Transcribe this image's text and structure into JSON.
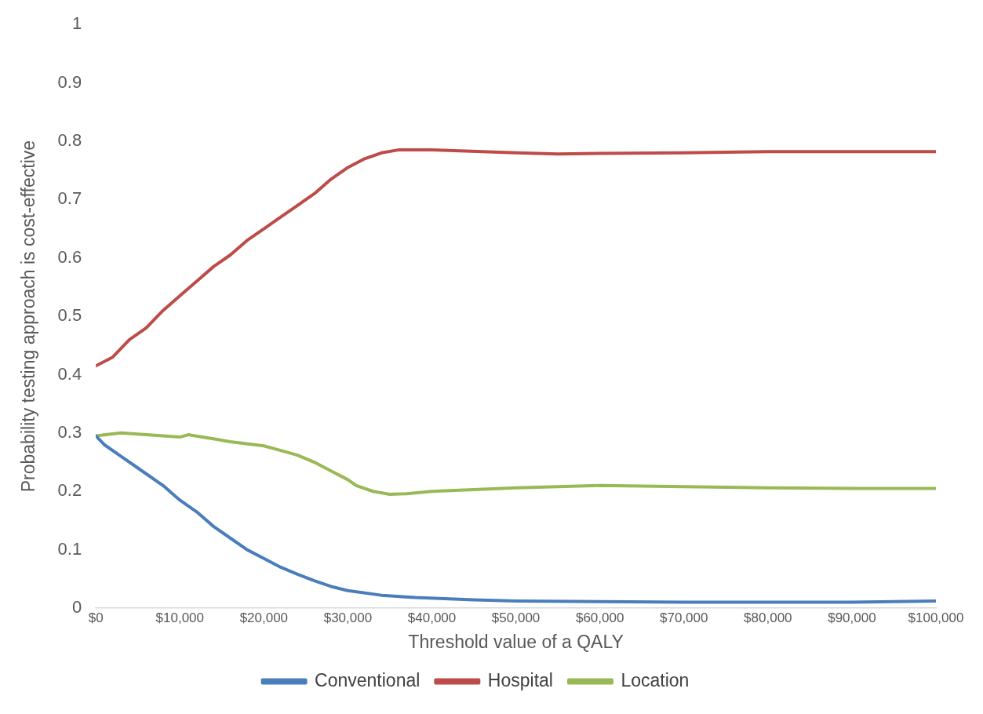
{
  "chart_data": {
    "type": "line",
    "xlabel": "Threshold value of a QALY",
    "ylabel": "Probability testing approach is cost-effective",
    "xlim": [
      0,
      100000
    ],
    "xticks": [
      {
        "value": 0,
        "label": "$0"
      },
      {
        "value": 10000,
        "label": "$10,000"
      },
      {
        "value": 20000,
        "label": "$20,000"
      },
      {
        "value": 30000,
        "label": "$30,000"
      },
      {
        "value": 40000,
        "label": "$40,000"
      },
      {
        "value": 50000,
        "label": "$50,000"
      },
      {
        "value": 60000,
        "label": "$60,000"
      },
      {
        "value": 70000,
        "label": "$70,000"
      },
      {
        "value": 80000,
        "label": "$80,000"
      },
      {
        "value": 90000,
        "label": "$90,000"
      },
      {
        "value": 100000,
        "label": "$100,000"
      }
    ],
    "ylim": [
      0,
      1
    ],
    "yticks": [
      0,
      0.1,
      0.2,
      0.3,
      0.4,
      0.5,
      0.6,
      0.7,
      0.8,
      0.9,
      1
    ],
    "grid": false,
    "legend": "bottom",
    "marker": "none",
    "line_style": "solid",
    "series": [
      {
        "name": "Conventional",
        "color": "#4a7ebb",
        "x": [
          0,
          1000,
          3000,
          5000,
          8000,
          10000,
          12000,
          14000,
          16000,
          18000,
          20000,
          22000,
          24000,
          26000,
          28000,
          30000,
          34000,
          38000,
          45000,
          50000,
          60000,
          70000,
          80000,
          90000,
          100000
        ],
        "values": [
          0.295,
          0.28,
          0.26,
          0.24,
          0.21,
          0.185,
          0.165,
          0.14,
          0.12,
          0.1,
          0.085,
          0.07,
          0.058,
          0.047,
          0.037,
          0.03,
          0.022,
          0.018,
          0.014,
          0.012,
          0.011,
          0.01,
          0.01,
          0.01,
          0.012
        ]
      },
      {
        "name": "Hospital",
        "color": "#be4b48",
        "x": [
          0,
          2000,
          4000,
          6000,
          8000,
          10000,
          12000,
          14000,
          16000,
          18000,
          20000,
          22000,
          24000,
          26000,
          28000,
          30000,
          32000,
          34000,
          36000,
          40000,
          50000,
          55000,
          60000,
          70000,
          80000,
          90000,
          100000
        ],
        "values": [
          0.415,
          0.43,
          0.46,
          0.48,
          0.51,
          0.535,
          0.56,
          0.585,
          0.605,
          0.63,
          0.65,
          0.67,
          0.69,
          0.71,
          0.735,
          0.755,
          0.77,
          0.78,
          0.785,
          0.785,
          0.78,
          0.778,
          0.779,
          0.78,
          0.782,
          0.782,
          0.782
        ]
      },
      {
        "name": "Location",
        "color": "#98b954",
        "x": [
          0,
          3000,
          6000,
          10000,
          11000,
          14000,
          16000,
          20000,
          22000,
          24000,
          26000,
          28000,
          30000,
          31000,
          33000,
          35000,
          37000,
          40000,
          45000,
          50000,
          55000,
          60000,
          70000,
          80000,
          90000,
          100000
        ],
        "values": [
          0.295,
          0.3,
          0.297,
          0.293,
          0.297,
          0.29,
          0.285,
          0.278,
          0.27,
          0.262,
          0.25,
          0.235,
          0.22,
          0.21,
          0.2,
          0.195,
          0.196,
          0.2,
          0.203,
          0.206,
          0.208,
          0.21,
          0.208,
          0.206,
          0.205,
          0.205
        ]
      }
    ]
  }
}
